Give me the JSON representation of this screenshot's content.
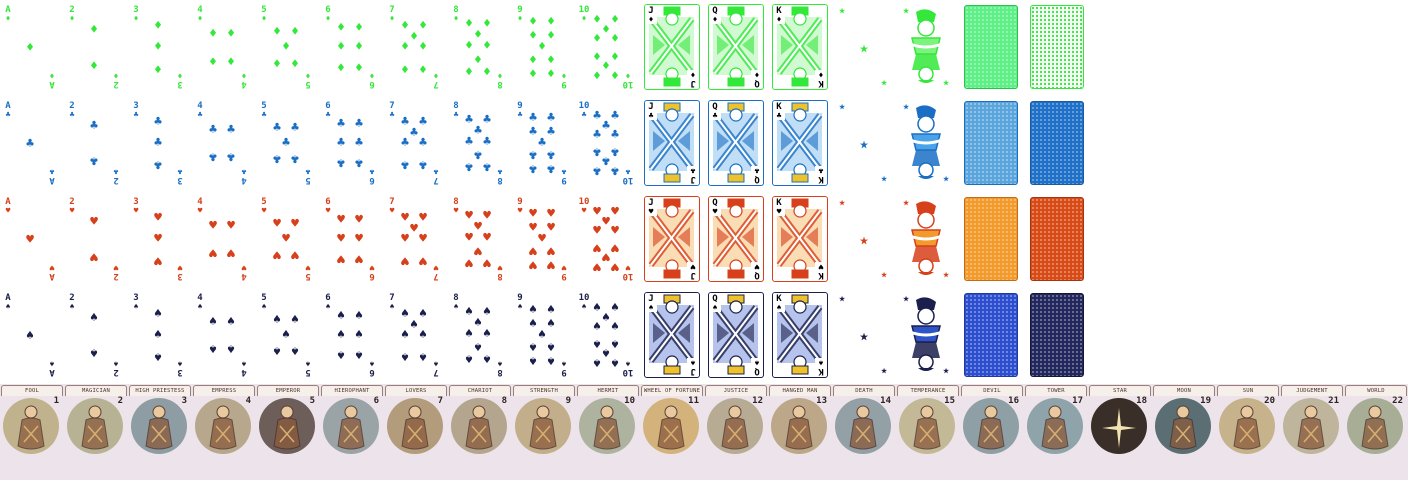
{
  "deck": {
    "ranks": [
      "A",
      "2",
      "3",
      "4",
      "5",
      "6",
      "7",
      "8",
      "9",
      "10"
    ],
    "faces": [
      "J",
      "Q",
      "K"
    ],
    "suits": [
      {
        "name": "diamonds",
        "glyph": "♦",
        "color": "#33e83a",
        "light": "#7cf27f",
        "back_a": "#5ef086",
        "back_b": "#f6fff6",
        "back_a_border": "#27c34c",
        "back_b_border": "#33e83a"
      },
      {
        "name": "clubs",
        "glyph": "♣",
        "color": "#1a6fc4",
        "light": "#4aa3e8",
        "back_a": "#5aa6dc",
        "back_b": "#1f70c8",
        "back_a_border": "#1a6fc4",
        "back_b_border": "#1a5aa0"
      },
      {
        "name": "hearts",
        "glyph": "♥",
        "color": "#d6401b",
        "light": "#f29a2c",
        "back_a": "#f29a2a",
        "back_b": "#d84a16",
        "back_a_border": "#c86a12",
        "back_b_border": "#a8340e"
      },
      {
        "name": "spades",
        "glyph": "♠",
        "color": "#1b1f4b",
        "light": "#2f54c9",
        "back_a": "#2d4fcf",
        "back_b": "#22285e",
        "back_a_border": "#1d3aa6",
        "back_b_border": "#141735"
      }
    ],
    "joker_glyph": "★"
  },
  "tarot": [
    {
      "label": "FOOL",
      "num": "1",
      "bg": "#c0b28c"
    },
    {
      "label": "MAGICIAN",
      "num": "2",
      "bg": "#b8b294"
    },
    {
      "label": "HIGH PRIESTESS",
      "num": "3",
      "bg": "#8e9da3"
    },
    {
      "label": "EMPRESS",
      "num": "4",
      "bg": "#b7a78c"
    },
    {
      "label": "EMPEROR",
      "num": "5",
      "bg": "#6e5e5a"
    },
    {
      "label": "HIEROPHANT",
      "num": "6",
      "bg": "#9aa4a6"
    },
    {
      "label": "LOVERS",
      "num": "7",
      "bg": "#b39c7c"
    },
    {
      "label": "CHARIOT",
      "num": "8",
      "bg": "#b4a68e"
    },
    {
      "label": "STRENGTH",
      "num": "9",
      "bg": "#c2ae8a"
    },
    {
      "label": "HERMIT",
      "num": "10",
      "bg": "#aeb39f"
    },
    {
      "label": "WHEEL OF FORTUNE",
      "num": "11",
      "bg": "#d4b27c"
    },
    {
      "label": "JUSTICE",
      "num": "12",
      "bg": "#b7ab94"
    },
    {
      "label": "HANGED MAN",
      "num": "13",
      "bg": "#bca888"
    },
    {
      "label": "DEATH",
      "num": "14",
      "bg": "#93a0a5"
    },
    {
      "label": "TEMPERANCE",
      "num": "15",
      "bg": "#c3b996"
    },
    {
      "label": "DEVIL",
      "num": "16",
      "bg": "#8f9fa6"
    },
    {
      "label": "TOWER",
      "num": "17",
      "bg": "#8ea4aa"
    },
    {
      "label": "STAR",
      "num": "18",
      "bg": "#3a2e28"
    },
    {
      "label": "MOON",
      "num": "19",
      "bg": "#5b6e74"
    },
    {
      "label": "SUN",
      "num": "20",
      "bg": "#c6b38c"
    },
    {
      "label": "JUDGEMENT",
      "num": "21",
      "bg": "#bfb49c"
    },
    {
      "label": "WORLD",
      "num": "22",
      "bg": "#a8ae96"
    }
  ]
}
